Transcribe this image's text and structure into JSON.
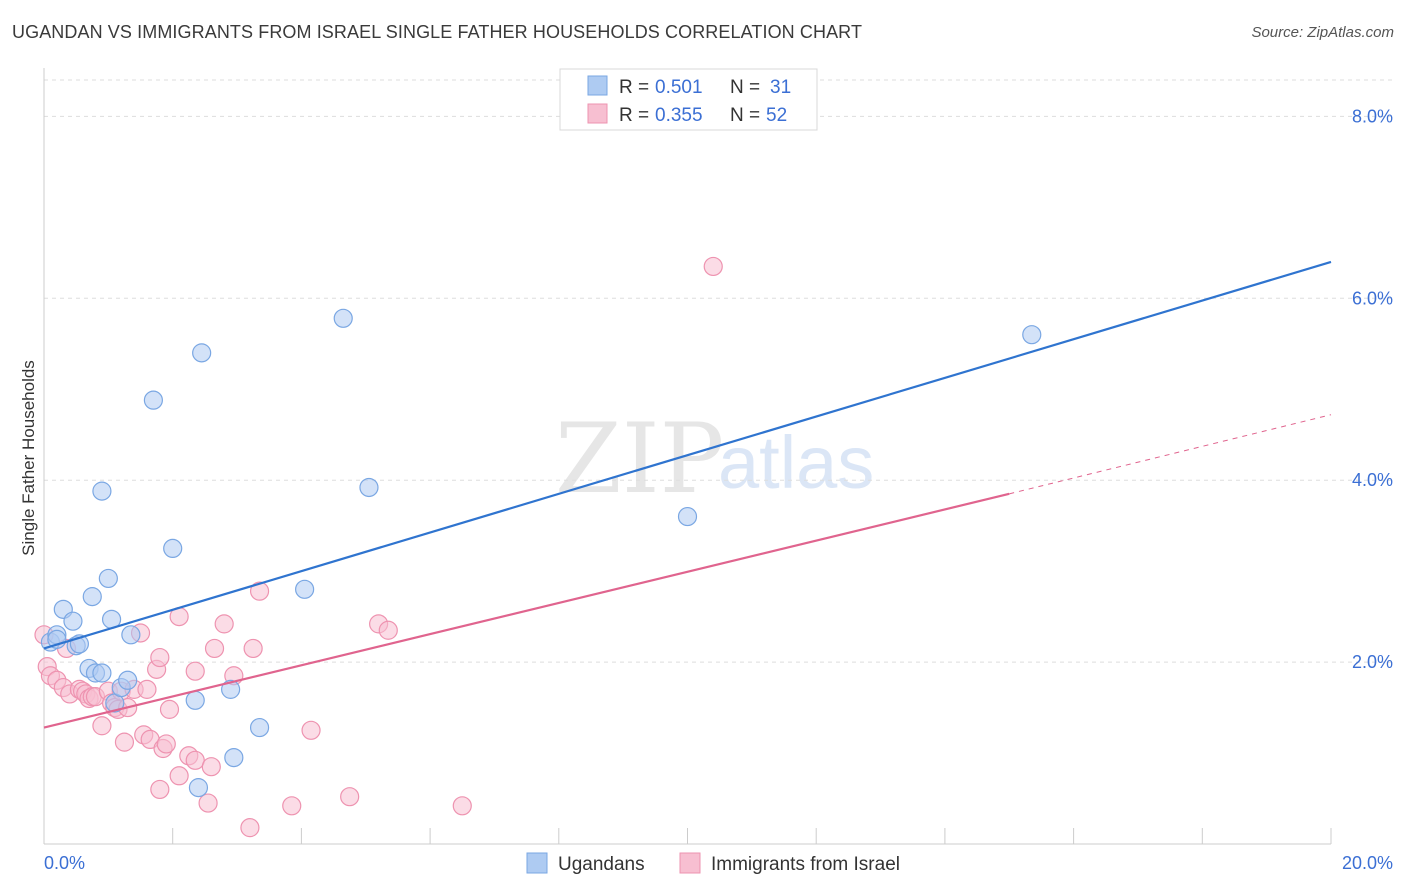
{
  "header": {
    "title": "UGANDAN VS IMMIGRANTS FROM ISRAEL SINGLE FATHER HOUSEHOLDS CORRELATION CHART",
    "source": "Source: ZipAtlas.com"
  },
  "watermark": {
    "part1": "ZIP",
    "part2": "atlas"
  },
  "colors": {
    "blue_fill": "#aecbf2",
    "blue_stroke": "#7aa7e3",
    "blue_line": "#2f74cf",
    "pink_fill": "#f7bfd1",
    "pink_stroke": "#ee93b0",
    "pink_line": "#e0648e",
    "tick_text": "#3b6fd4",
    "grid": "#dddddd"
  },
  "legend": {
    "rows": [
      {
        "r_label": "R = ",
        "r_value": "0.501",
        "n_label": "N = ",
        "n_value": "31"
      },
      {
        "r_label": "R = ",
        "r_value": "0.355",
        "n_label": "N = ",
        "n_value": "52"
      }
    ]
  },
  "bottom_legend": {
    "items": [
      "Ugandans",
      "Immigrants from Israel"
    ]
  },
  "chart_data": {
    "type": "scatter",
    "title": "UGANDAN VS IMMIGRANTS FROM ISRAEL SINGLE FATHER HOUSEHOLDS CORRELATION CHART",
    "xlabel": "",
    "ylabel": "Single Father Households",
    "xlim": [
      0,
      20
    ],
    "ylim": [
      0,
      8.4
    ],
    "x_tick_labels": [
      "0.0%",
      "20.0%"
    ],
    "y_ticks": [
      2,
      4,
      6,
      8
    ],
    "y_tick_labels": [
      "2.0%",
      "4.0%",
      "6.0%",
      "8.0%"
    ],
    "grid": "horizontal dashed",
    "legend_position": "top-center",
    "series": [
      {
        "name": "Ugandans",
        "r": 0.501,
        "n": 31,
        "points": [
          [
            0.1,
            2.22
          ],
          [
            0.2,
            2.3
          ],
          [
            0.3,
            2.58
          ],
          [
            0.45,
            2.45
          ],
          [
            0.5,
            2.18
          ],
          [
            0.55,
            2.2
          ],
          [
            0.7,
            1.93
          ],
          [
            0.75,
            2.72
          ],
          [
            0.8,
            1.88
          ],
          [
            0.9,
            1.88
          ],
          [
            0.9,
            3.88
          ],
          [
            1.0,
            2.92
          ],
          [
            1.05,
            2.47
          ],
          [
            1.1,
            1.55
          ],
          [
            1.2,
            1.72
          ],
          [
            1.3,
            1.8
          ],
          [
            1.35,
            2.3
          ],
          [
            1.7,
            4.88
          ],
          [
            2.0,
            3.25
          ],
          [
            2.35,
            1.58
          ],
          [
            2.4,
            0.62
          ],
          [
            2.45,
            5.4
          ],
          [
            2.9,
            1.7
          ],
          [
            2.95,
            0.95
          ],
          [
            3.35,
            1.28
          ],
          [
            4.05,
            2.8
          ],
          [
            4.65,
            5.78
          ],
          [
            5.05,
            3.92
          ],
          [
            10.0,
            3.6
          ],
          [
            15.35,
            5.6
          ],
          [
            0.2,
            2.25
          ]
        ],
        "trend": {
          "x": [
            0,
            20
          ],
          "y": [
            2.15,
            6.4
          ]
        }
      },
      {
        "name": "Immigrants from Israel",
        "r": 0.355,
        "n": 52,
        "points": [
          [
            0.0,
            2.3
          ],
          [
            0.05,
            1.95
          ],
          [
            0.1,
            1.85
          ],
          [
            0.2,
            1.8
          ],
          [
            0.3,
            1.72
          ],
          [
            0.35,
            2.15
          ],
          [
            0.4,
            1.65
          ],
          [
            0.55,
            1.7
          ],
          [
            0.6,
            1.68
          ],
          [
            0.65,
            1.65
          ],
          [
            0.7,
            1.6
          ],
          [
            0.75,
            1.62
          ],
          [
            0.8,
            1.62
          ],
          [
            0.9,
            1.3
          ],
          [
            1.0,
            1.68
          ],
          [
            1.05,
            1.55
          ],
          [
            1.1,
            1.5
          ],
          [
            1.15,
            1.48
          ],
          [
            1.2,
            1.68
          ],
          [
            1.25,
            1.12
          ],
          [
            1.3,
            1.5
          ],
          [
            1.4,
            1.7
          ],
          [
            1.5,
            2.32
          ],
          [
            1.55,
            1.2
          ],
          [
            1.65,
            1.15
          ],
          [
            1.6,
            1.7
          ],
          [
            1.75,
            1.92
          ],
          [
            1.8,
            0.6
          ],
          [
            1.8,
            2.05
          ],
          [
            1.85,
            1.05
          ],
          [
            1.9,
            1.1
          ],
          [
            1.95,
            1.48
          ],
          [
            2.1,
            0.75
          ],
          [
            2.1,
            2.5
          ],
          [
            2.25,
            0.97
          ],
          [
            2.35,
            1.9
          ],
          [
            2.35,
            0.92
          ],
          [
            2.55,
            0.45
          ],
          [
            2.6,
            0.85
          ],
          [
            2.65,
            2.15
          ],
          [
            2.8,
            2.42
          ],
          [
            2.95,
            1.85
          ],
          [
            3.2,
            0.18
          ],
          [
            3.25,
            2.15
          ],
          [
            3.35,
            2.78
          ],
          [
            3.85,
            0.42
          ],
          [
            4.15,
            1.25
          ],
          [
            4.75,
            0.52
          ],
          [
            5.2,
            2.42
          ],
          [
            5.35,
            2.35
          ],
          [
            6.5,
            0.42
          ],
          [
            10.4,
            6.35
          ]
        ],
        "trend": {
          "x": [
            0,
            15
          ],
          "y": [
            1.28,
            3.85
          ]
        },
        "trend_dashed": {
          "x": [
            15,
            20
          ],
          "y": [
            3.85,
            4.72
          ]
        }
      }
    ]
  }
}
